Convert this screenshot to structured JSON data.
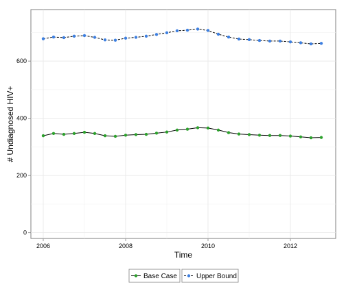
{
  "chart_data": {
    "type": "line",
    "title": "",
    "xlabel": "Time",
    "ylabel": "# Undiagnosed HIV+",
    "xlim": [
      2005.7,
      2013.1
    ],
    "ylim": [
      -20,
      780
    ],
    "x_ticks": [
      2006,
      2008,
      2010,
      2012
    ],
    "x_tick_labels": [
      "2006",
      "2008",
      "2010",
      "2012"
    ],
    "y_ticks": [
      0,
      200,
      400,
      600
    ],
    "y_tick_labels": [
      "0",
      "200",
      "400",
      "600"
    ],
    "grid": true,
    "legend_position": "bottom",
    "x": [
      2006,
      2006.25,
      2006.5,
      2006.75,
      2007,
      2007.25,
      2007.5,
      2007.75,
      2008,
      2008.25,
      2008.5,
      2008.75,
      2009,
      2009.25,
      2009.5,
      2009.75,
      2010,
      2010.25,
      2010.5,
      2010.75,
      2011,
      2011.25,
      2011.5,
      2011.75,
      2012,
      2012.25,
      2012.5,
      2012.75
    ],
    "series": [
      {
        "name": "Base Case",
        "color": "#2ca02c",
        "line_style": "solid",
        "values": [
          339,
          347,
          344,
          347,
          351,
          347,
          339,
          337,
          341,
          343,
          344,
          348,
          352,
          359,
          362,
          367,
          366,
          359,
          350,
          345,
          343,
          341,
          340,
          340,
          338,
          335,
          332,
          333
        ]
      },
      {
        "name": "Upper Bound",
        "color": "#3d7fe0",
        "line_style": "dashed",
        "values": [
          678,
          684,
          682,
          687,
          689,
          683,
          674,
          673,
          680,
          683,
          687,
          693,
          699,
          706,
          708,
          712,
          707,
          694,
          684,
          677,
          675,
          672,
          670,
          670,
          667,
          664,
          660,
          662
        ]
      }
    ]
  }
}
